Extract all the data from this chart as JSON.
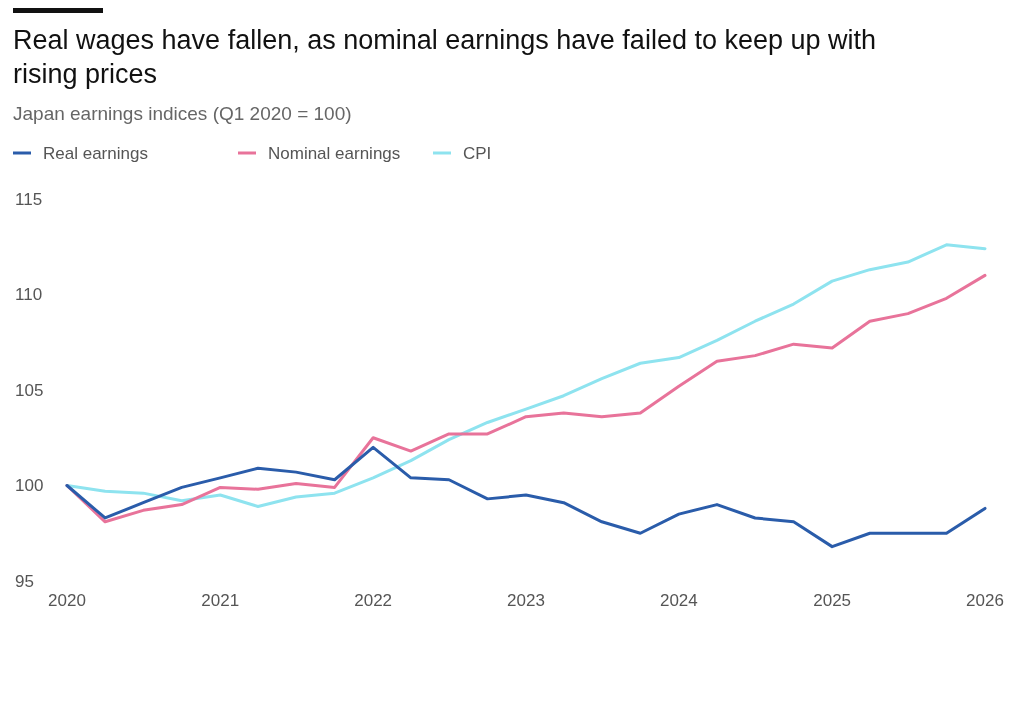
{
  "chart_data": {
    "type": "line",
    "title": "Real wages have fallen, as nominal earnings have failed to keep up with rising prices",
    "subtitle": "Japan earnings indices (Q1 2020 = 100)",
    "x": [
      "2020-01",
      "2020-04",
      "2020-07",
      "2020-10",
      "2021-01",
      "2021-04",
      "2021-07",
      "2021-10",
      "2022-01",
      "2022-04",
      "2022-07",
      "2022-10",
      "2023-01",
      "2023-04",
      "2023-07",
      "2023-10",
      "2024-01",
      "2024-04",
      "2024-07",
      "2024-10",
      "2025-01",
      "2025-04",
      "2025-07",
      "2025-10",
      "2026-01"
    ],
    "series": [
      {
        "name": "Real earnings",
        "color": "#2a5caa",
        "values": [
          100.0,
          98.3,
          99.1,
          99.9,
          100.4,
          100.9,
          100.7,
          100.3,
          102.0,
          100.4,
          100.3,
          99.3,
          99.5,
          99.1,
          98.1,
          97.5,
          98.5,
          99.0,
          98.3,
          98.1,
          96.8,
          97.5,
          97.5,
          97.5,
          98.8
        ]
      },
      {
        "name": "Nominal earnings",
        "color": "#e8739a",
        "values": [
          100.0,
          98.1,
          98.7,
          99.0,
          99.9,
          99.8,
          100.1,
          99.9,
          102.5,
          101.8,
          102.7,
          102.7,
          103.6,
          103.8,
          103.6,
          103.8,
          105.2,
          106.5,
          106.8,
          107.4,
          107.2,
          108.6,
          109.0,
          109.8,
          111.0
        ]
      },
      {
        "name": "CPI",
        "color": "#8ee3ef",
        "values": [
          100.0,
          99.7,
          99.6,
          99.2,
          99.5,
          98.9,
          99.4,
          99.6,
          100.4,
          101.3,
          102.4,
          103.3,
          104.0,
          104.7,
          105.6,
          106.4,
          106.7,
          107.6,
          108.6,
          109.5,
          110.7,
          111.3,
          111.7,
          112.6,
          112.4
        ]
      }
    ],
    "xlim": [
      "2020-01",
      "2026-01"
    ],
    "xticks": [
      "2020",
      "2021",
      "2022",
      "2023",
      "2024",
      "2025",
      "2026"
    ],
    "ylim": [
      95,
      115
    ],
    "yticks": [
      95,
      100,
      105,
      110,
      115
    ],
    "legend": "top left",
    "line_style": "solid",
    "marker": "none",
    "grid": false
  }
}
